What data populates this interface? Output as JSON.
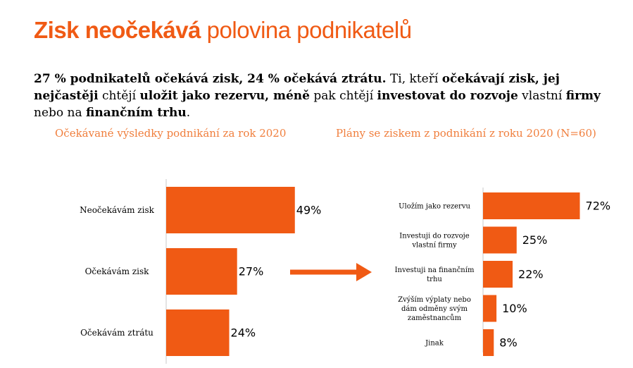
{
  "header": {
    "title_bold": "Zisk neočekává",
    "title_light": "polovina podnikatelů"
  },
  "lead": {
    "segments": [
      {
        "text": "27 % podnikatelů očekává zisk, 24 % očekává ztrátu.",
        "bold": true
      },
      {
        "text": " Ti, kteří ",
        "bold": false
      },
      {
        "text": "očekávají zisk, jej nejčastěji",
        "bold": true
      },
      {
        "text": " chtějí ",
        "bold": false
      },
      {
        "text": "uložit jako rezervu, méně",
        "bold": false,
        "bold_words": true
      },
      {
        "text": " pak chtějí ",
        "bold": false
      },
      {
        "text": "investovat do rozvoje",
        "bold": true
      },
      {
        "text": " vlastní ",
        "bold": false
      },
      {
        "text": "firmy",
        "bold": true
      },
      {
        "text": " nebo na ",
        "bold": false
      },
      {
        "text": "finančním trhu",
        "bold": true
      },
      {
        "text": ".",
        "bold": false
      }
    ]
  },
  "colors": {
    "accent": "#f05a14",
    "subtitle": "#f07e3c",
    "axis": "#c8c8c8"
  },
  "chart_data": [
    {
      "type": "bar",
      "orientation": "horizontal",
      "title": "Očekávané výsledky podnikání za rok 2020",
      "categories": [
        "Neočekávám zisk",
        "Očekávám zisk",
        "Očekávám ztrátu"
      ],
      "values": [
        49,
        27,
        24
      ],
      "value_labels": [
        "49%",
        "27%",
        "24%"
      ],
      "unit": "%",
      "xlim": [
        0,
        100
      ],
      "grid": false,
      "legend": "none"
    },
    {
      "type": "bar",
      "orientation": "horizontal",
      "title": "Plány se ziskem z podnikání z roku 2020 (N=60)",
      "categories": [
        [
          "Uložím jako rezervu"
        ],
        [
          "Investuji do rozvoje",
          "vlastní firmy"
        ],
        [
          "Investuji na finančním",
          "trhu"
        ],
        [
          "Zvýším výplaty nebo",
          "dám odměny svým",
          "zaměstnancům"
        ],
        [
          "Jinak"
        ]
      ],
      "values": [
        72,
        25,
        22,
        10,
        8
      ],
      "value_labels": [
        "72%",
        "25%",
        "22%",
        "10%",
        "8%"
      ],
      "unit": "%",
      "xlim": [
        0,
        100
      ],
      "grid": false,
      "legend": "none"
    }
  ]
}
